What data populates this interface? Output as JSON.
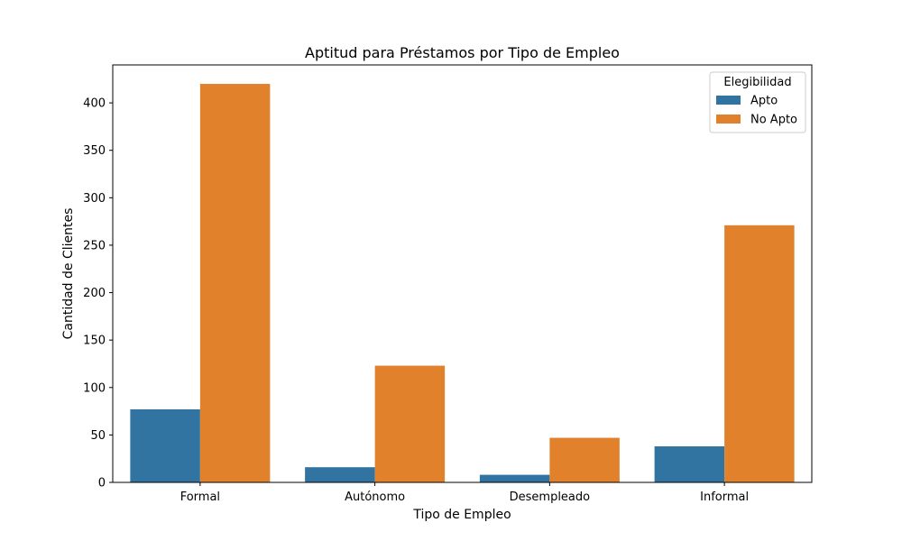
{
  "chart_data": {
    "type": "bar",
    "title": "Aptitud para Préstamos por Tipo de Empleo",
    "xlabel": "Tipo de Empleo",
    "ylabel": "Cantidad de Clientes",
    "categories": [
      "Formal",
      "Autónomo",
      "Desempleado",
      "Informal"
    ],
    "series": [
      {
        "name": "Apto",
        "values": [
          77,
          16,
          8,
          38
        ],
        "color": "#3274a1"
      },
      {
        "name": "No Apto",
        "values": [
          420,
          123,
          47,
          271
        ],
        "color": "#e1812c"
      }
    ],
    "ylim": [
      0,
      440
    ],
    "yticks": [
      0,
      50,
      100,
      150,
      200,
      250,
      300,
      350,
      400
    ],
    "grid": false,
    "legend": {
      "title": "Elegibilidad",
      "position": "top-right"
    }
  }
}
